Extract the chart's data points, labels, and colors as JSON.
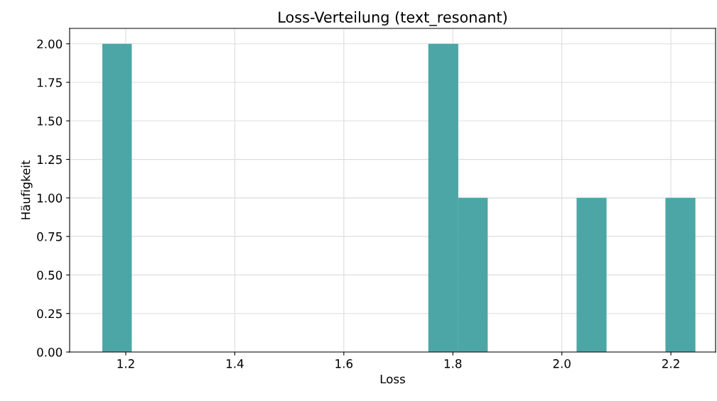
{
  "chart_data": {
    "type": "histogram",
    "title": "Loss-Verteilung (text_resonant)",
    "xlabel": "Loss",
    "ylabel": "Häufigkeit",
    "bins": [
      1.157,
      1.211,
      1.755,
      1.81,
      1.864,
      2.027,
      2.082,
      2.19,
      2.245
    ],
    "values": [
      2,
      0,
      2,
      1,
      0,
      1,
      0,
      1
    ],
    "color": "#4da6a6",
    "xlim": [
      1.097,
      2.282
    ],
    "xticks": [
      1.2,
      1.4,
      1.6,
      1.8,
      {
        "value": 2,
        "label": "2.0"
      },
      2.2
    ],
    "ylim": [
      0,
      2.1
    ],
    "yticks": [
      {
        "value": 0,
        "label": "0.00"
      },
      {
        "value": 0.25,
        "label": "0.25"
      },
      {
        "value": 0.5,
        "label": "0.50"
      },
      {
        "value": 0.75,
        "label": "0.75"
      },
      {
        "value": 1,
        "label": "1.00"
      },
      {
        "value": 1.25,
        "label": "1.25"
      },
      {
        "value": 1.5,
        "label": "1.50"
      },
      {
        "value": 1.75,
        "label": "1.75"
      },
      {
        "value": 2,
        "label": "2.00"
      }
    ],
    "grid": true
  }
}
